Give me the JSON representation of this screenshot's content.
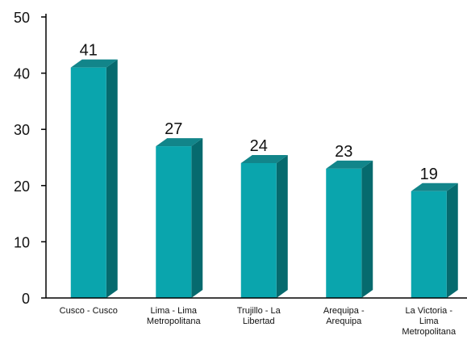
{
  "chart_data": {
    "type": "bar",
    "style": "3d-column",
    "categories": [
      "Cusco - Cusco",
      "Lima - Lima Metropolitana",
      "Trujillo - La Libertad",
      "Arequipa - Arequipa",
      "La Victoria - Lima Metropolitana"
    ],
    "category_lines": [
      [
        "Cusco - Cusco"
      ],
      [
        "Lima - Lima",
        "Metropolitana"
      ],
      [
        "Trujillo - La",
        "Libertad"
      ],
      [
        "Arequipa -",
        "Arequipa"
      ],
      [
        "La Victoria -",
        "Lima",
        "Metropolitana"
      ]
    ],
    "values": [
      41,
      27,
      24,
      23,
      19
    ],
    "data_labels": [
      "41",
      "27",
      "24",
      "23",
      "19"
    ],
    "ylim": [
      0,
      50
    ],
    "yticks": [
      0,
      10,
      20,
      30,
      40,
      50
    ],
    "grid": false,
    "colors": {
      "front": "#0aa5ad",
      "side": "#066a6e",
      "top": "#12858a",
      "axis": "#000000"
    }
  }
}
